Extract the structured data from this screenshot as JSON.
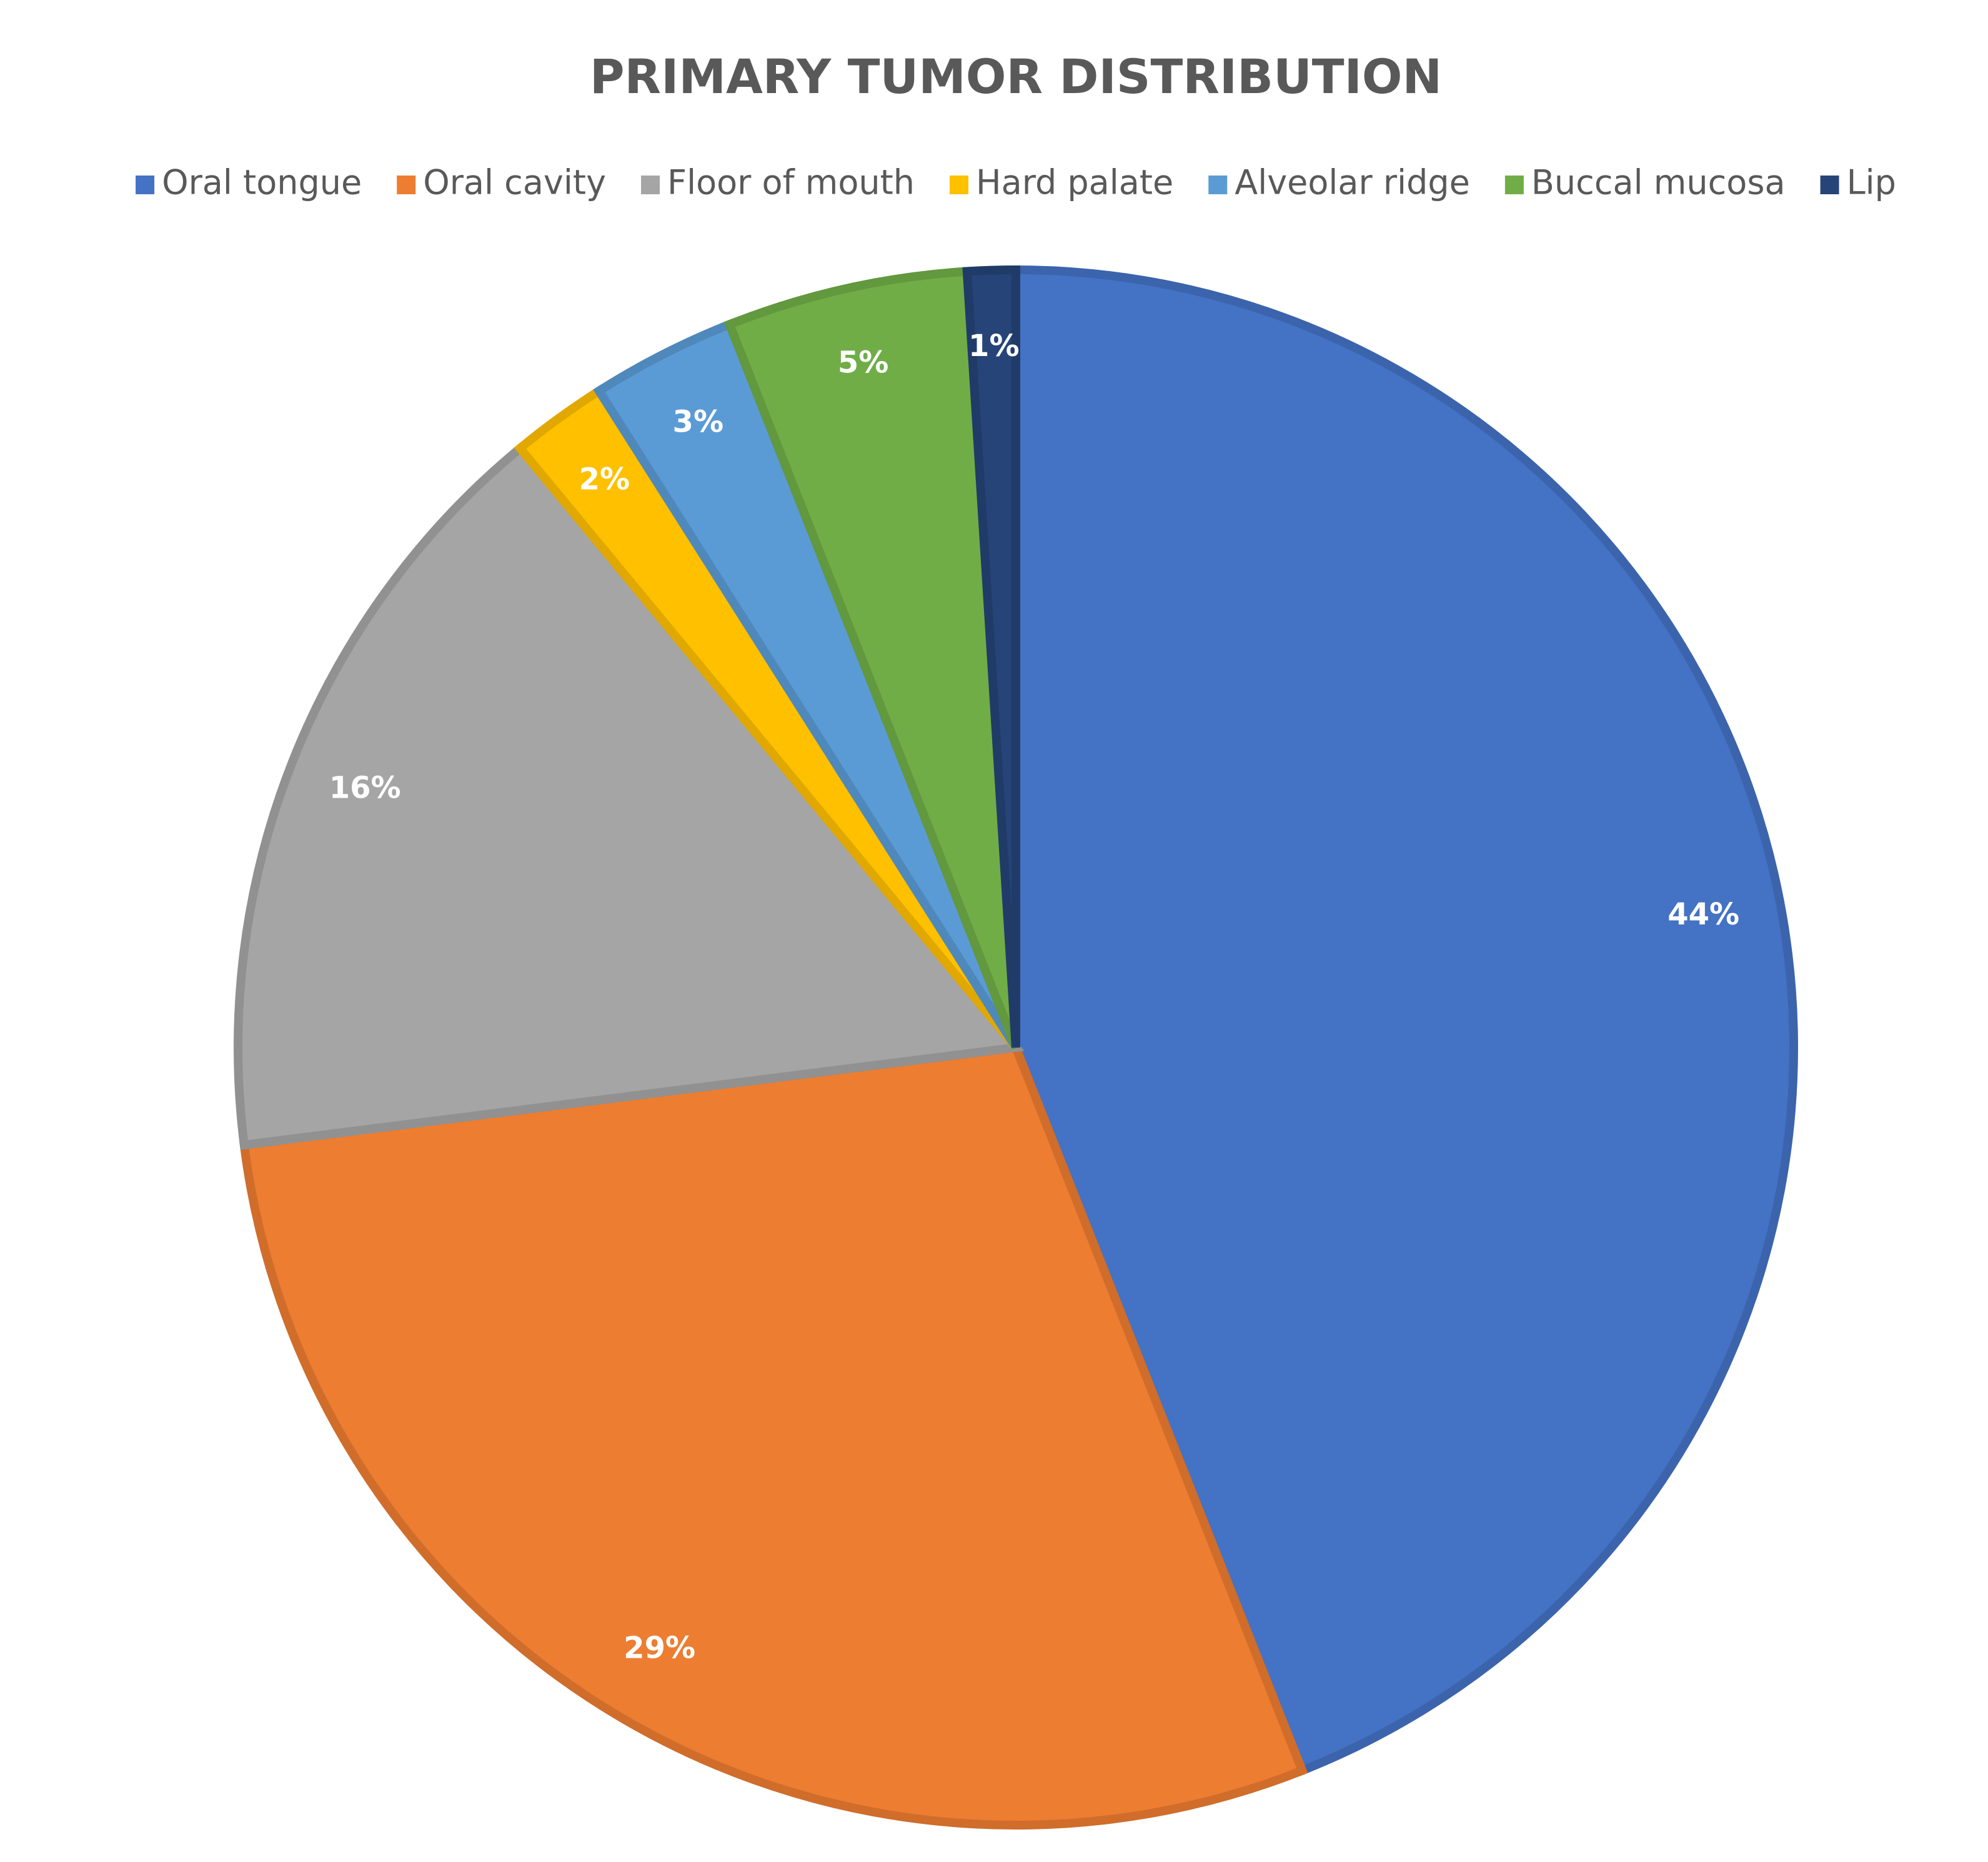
{
  "chart_data": {
    "type": "pie",
    "title": "PRIMARY TUMOR DISTRIBUTION",
    "categories": [
      "Oral tongue",
      "Oral cavity",
      "Floor of mouth",
      "Hard palate",
      "Alveolar ridge",
      "Buccal mucosa",
      "Lip"
    ],
    "values": [
      44,
      29,
      16,
      2,
      3,
      5,
      1
    ],
    "value_labels": [
      "44%",
      "29%",
      "16%",
      "2%",
      "3%",
      "5%",
      "1%"
    ],
    "colors": [
      "#4472c4",
      "#ed7d31",
      "#a5a5a5",
      "#ffc000",
      "#5b9bd5",
      "#70ad47",
      "#264478"
    ],
    "legend": "top"
  }
}
